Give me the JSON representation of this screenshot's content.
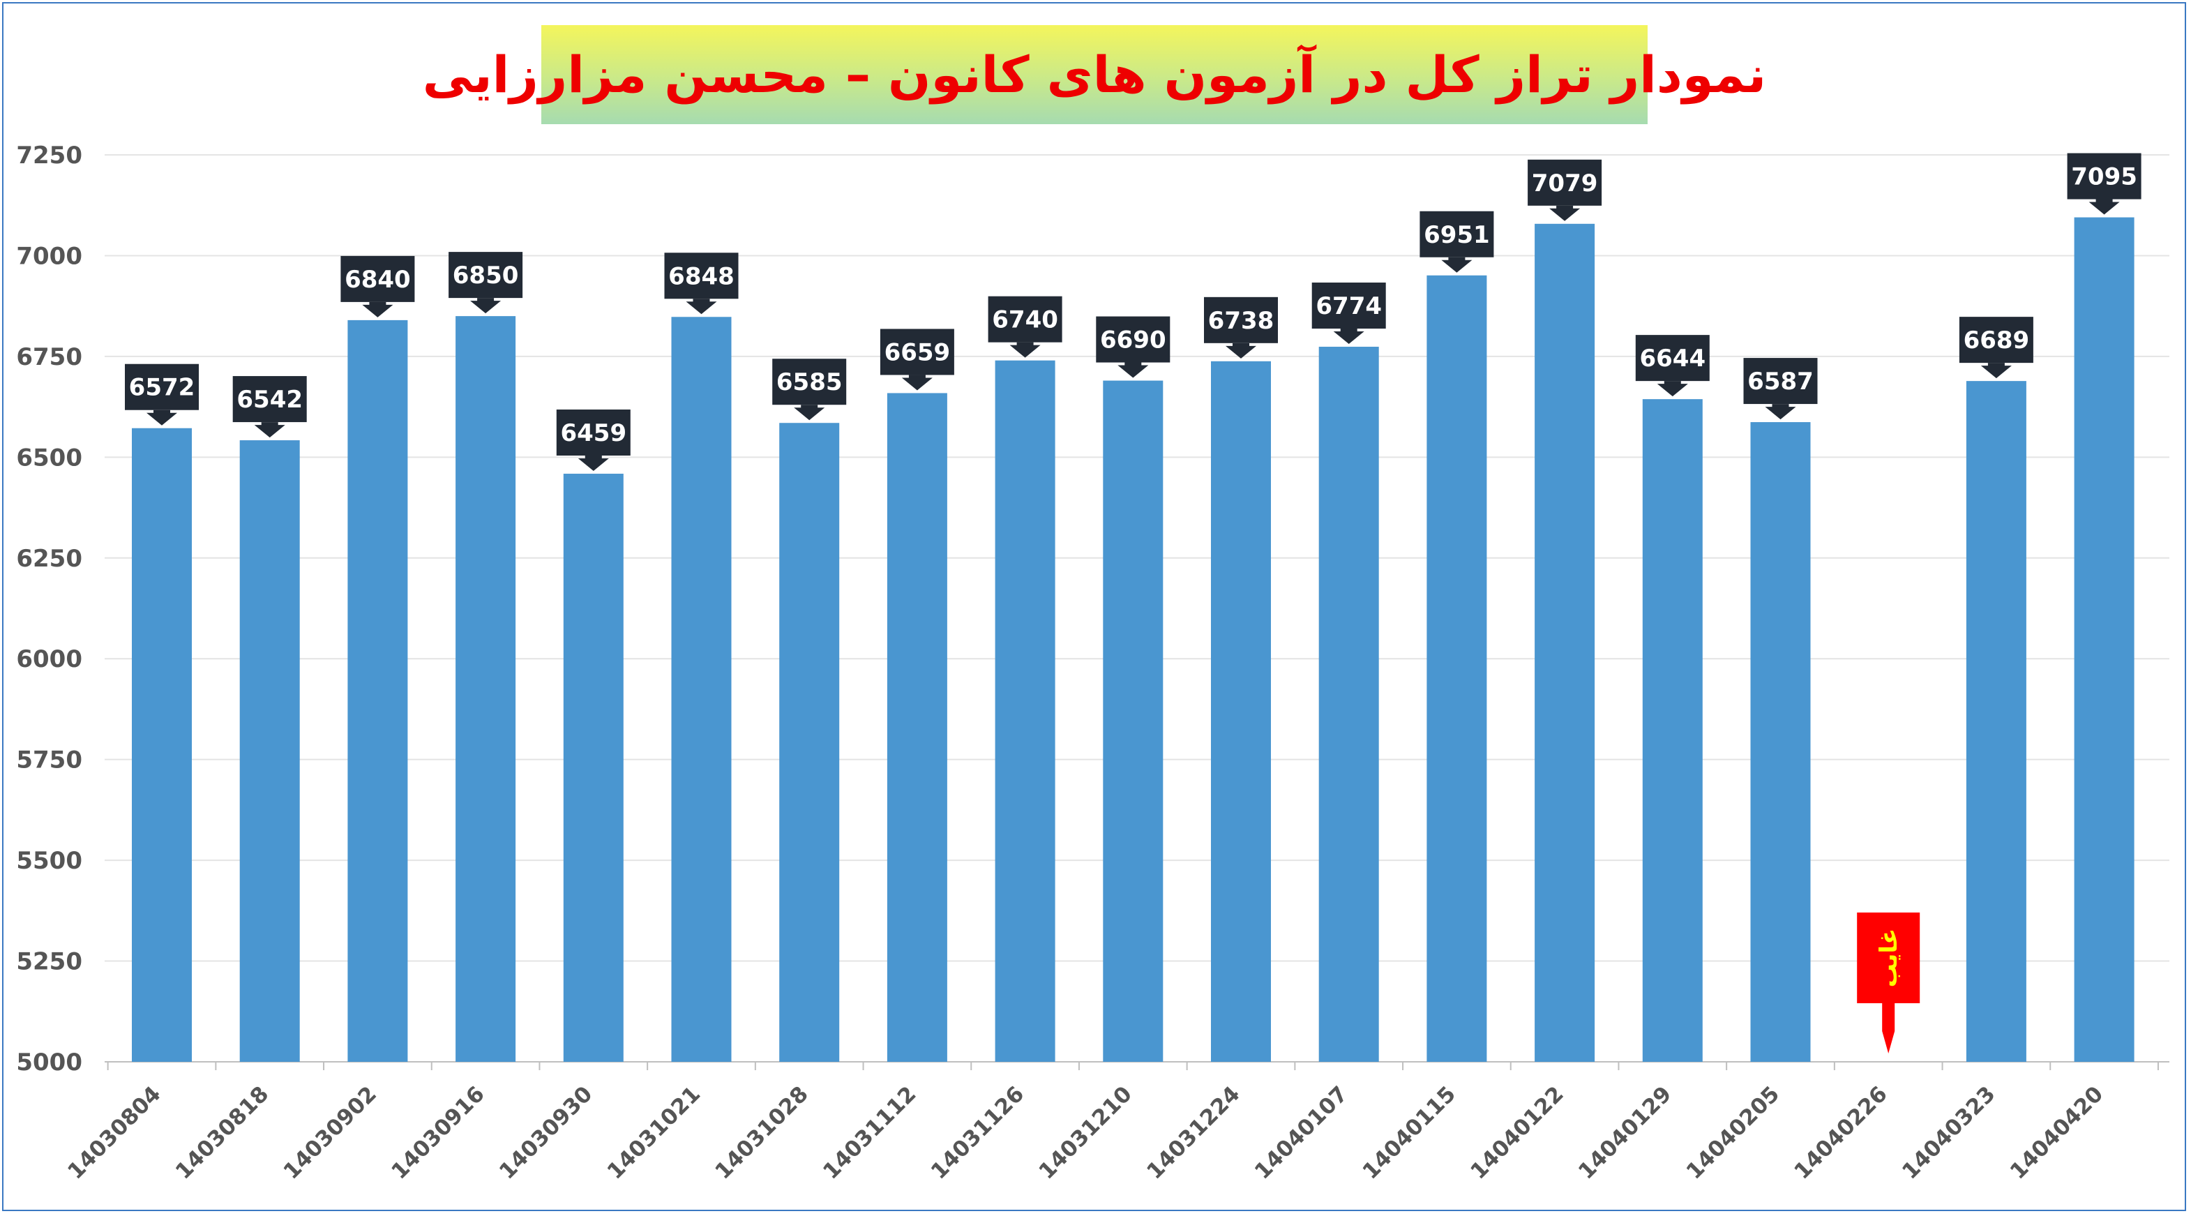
{
  "chart_data": {
    "type": "bar",
    "title": "نمودار تراز کل در آزمون های کانون – محسن مزارزایی",
    "categories": [
      "14030804",
      "14030818",
      "14030902",
      "14030916",
      "14030930",
      "14031021",
      "14031028",
      "14031112",
      "14031126",
      "14031210",
      "14031224",
      "14040107",
      "14040115",
      "14040122",
      "14040129",
      "14040205",
      "14040226",
      "14040323",
      "14040420"
    ],
    "values": [
      6572,
      6542,
      6840,
      6850,
      6459,
      6848,
      6585,
      6659,
      6740,
      6690,
      6738,
      6774,
      6951,
      7079,
      6644,
      6587,
      null,
      6689,
      7095
    ],
    "ylim": [
      5000,
      7250
    ],
    "yticks": [
      5000,
      5250,
      5500,
      5750,
      6000,
      6250,
      6500,
      6750,
      7000,
      7250
    ],
    "grid": true,
    "bar_color": "#4a96d0",
    "label_color": "#222a35",
    "absent_annotation": {
      "category": "14040226",
      "text": "غایب",
      "color": "#ff0000",
      "text_color": "#ffff00"
    }
  }
}
